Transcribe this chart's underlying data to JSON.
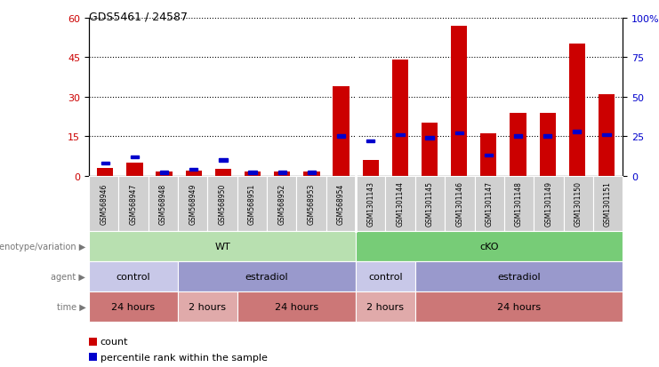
{
  "title": "GDS5461 / 24587",
  "samples": [
    "GSM568946",
    "GSM568947",
    "GSM568948",
    "GSM568949",
    "GSM568950",
    "GSM568951",
    "GSM568952",
    "GSM568953",
    "GSM568954",
    "GSM1301143",
    "GSM1301144",
    "GSM1301145",
    "GSM1301146",
    "GSM1301147",
    "GSM1301148",
    "GSM1301149",
    "GSM1301150",
    "GSM1301151"
  ],
  "counts": [
    3,
    5,
    1.5,
    2,
    2.5,
    1.5,
    1.5,
    1.5,
    34,
    6,
    44,
    20,
    57,
    16,
    24,
    24,
    50,
    31
  ],
  "percentiles": [
    8,
    12,
    2,
    4,
    10,
    2,
    2,
    2,
    25,
    22,
    26,
    24,
    27,
    13,
    25,
    25,
    28,
    26
  ],
  "ylim_left": [
    0,
    60
  ],
  "ylim_right": [
    0,
    100
  ],
  "yticks_left": [
    0,
    15,
    30,
    45,
    60
  ],
  "yticks_right": [
    0,
    25,
    50,
    75,
    100
  ],
  "bar_color": "#cc0000",
  "square_color": "#0000cc",
  "label_bg_color": "#d0d0d0",
  "genotype_groups": [
    {
      "label": "WT",
      "start": 0,
      "end": 8,
      "color": "#b8e0b0"
    },
    {
      "label": "cKO",
      "start": 9,
      "end": 17,
      "color": "#77cc77"
    }
  ],
  "agent_groups": [
    {
      "label": "control",
      "start": 0,
      "end": 2,
      "color": "#c8c8e8"
    },
    {
      "label": "estradiol",
      "start": 3,
      "end": 8,
      "color": "#9999cc"
    },
    {
      "label": "control",
      "start": 9,
      "end": 10,
      "color": "#c8c8e8"
    },
    {
      "label": "estradiol",
      "start": 11,
      "end": 17,
      "color": "#9999cc"
    }
  ],
  "time_groups": [
    {
      "label": "24 hours",
      "start": 0,
      "end": 2,
      "color": "#cc7777"
    },
    {
      "label": "2 hours",
      "start": 3,
      "end": 4,
      "color": "#e0aaaa"
    },
    {
      "label": "24 hours",
      "start": 5,
      "end": 8,
      "color": "#cc7777"
    },
    {
      "label": "2 hours",
      "start": 9,
      "end": 10,
      "color": "#e0aaaa"
    },
    {
      "label": "24 hours",
      "start": 11,
      "end": 17,
      "color": "#cc7777"
    }
  ],
  "row_labels": [
    "genotype/variation",
    "agent",
    "time"
  ],
  "legend_count_label": "count",
  "legend_pct_label": "percentile rank within the sample"
}
